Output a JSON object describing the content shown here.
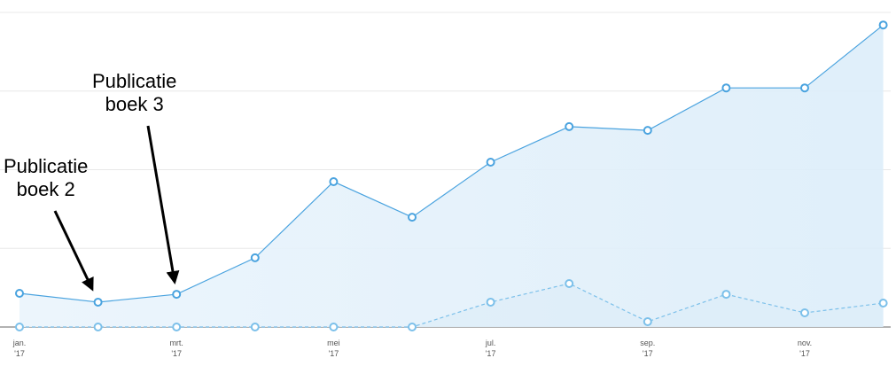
{
  "chart_data": {
    "type": "line",
    "categories": [
      "jan.\n'17",
      null,
      "mrt.\n'17",
      null,
      "mei\n'17",
      null,
      "jul.\n'17",
      null,
      "sep.\n'17",
      null,
      "nov.\n'17",
      null
    ],
    "series": [
      {
        "color": "#4aa3df",
        "dashed": false,
        "values": [
          10.7,
          7.9,
          10.4,
          22,
          46.2,
          34.9,
          52.4,
          63.7,
          62.5,
          76,
          76,
          96
        ]
      },
      {
        "color": "#7cc0ea",
        "dashed": true,
        "values": [
          0,
          0,
          0,
          0,
          0,
          0,
          7.9,
          13.8,
          1.7,
          10.4,
          4.5,
          7.6
        ]
      }
    ],
    "ylim": [
      0,
      100
    ],
    "yticks": [
      0,
      25,
      50,
      75,
      100
    ],
    "grid": true,
    "annotations": [
      {
        "text": "Publicatie\nboek 2",
        "index": 1
      },
      {
        "text": "Publicatie\nboek 3",
        "index": 2
      }
    ]
  }
}
